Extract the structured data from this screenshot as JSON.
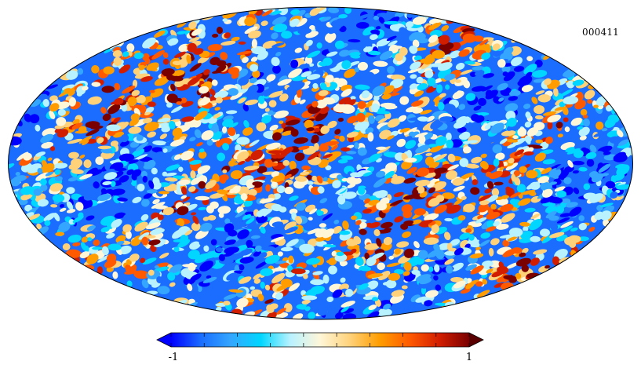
{
  "map": {
    "label": "000411",
    "projection": "mollweide"
  },
  "colorbar": {
    "min_label": "-1",
    "max_label": "1",
    "min": -1,
    "max": 1,
    "colors": [
      "#0000ff",
      "#1a6dff",
      "#34a6ff",
      "#00d6ff",
      "#b8f2ff",
      "#fff6d8",
      "#ffd27a",
      "#ff9d00",
      "#ff5a00",
      "#d21e00",
      "#7a0000"
    ]
  }
}
